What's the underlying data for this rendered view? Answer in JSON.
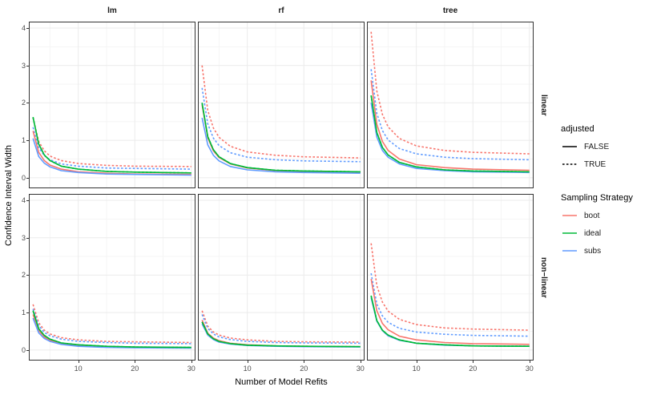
{
  "axes_note": "faceted line chart, white theme, gray gridlines",
  "colors": {
    "boot": "#F8766D",
    "ideal": "#00BA38",
    "subs": "#619CFF",
    "grid_major": "#EBEBEB",
    "grid_minor": "#F5F5F5",
    "panel_border": "#333333",
    "axis_text": "#4D4D4D",
    "line_black": "#000000"
  },
  "legend": {
    "adjusted": {
      "title": "adjusted",
      "items": [
        {
          "label": "FALSE",
          "linetype": "solid"
        },
        {
          "label": "TRUE",
          "linetype": "dashed"
        }
      ]
    },
    "sampling_strategy": {
      "title": "Sampling Strategy",
      "items": [
        {
          "label": "boot",
          "color": "#F8766D"
        },
        {
          "label": "ideal",
          "color": "#00BA38"
        },
        {
          "label": "subs",
          "color": "#619CFF"
        }
      ]
    }
  },
  "chart_data": {
    "type": "line",
    "xlabel": "Number of Model Refits",
    "ylabel": "Confidence Interval Width",
    "x_ticks": [
      10,
      20,
      30
    ],
    "y_ticks": [
      0,
      1,
      2,
      3,
      4
    ],
    "xlim": [
      1.4,
      30.6
    ],
    "ylim": [
      -0.26,
      4.15
    ],
    "grid_minor_x": [
      5,
      15,
      25
    ],
    "grid_minor_y": [
      0.5,
      1.5,
      2.5,
      3.5
    ],
    "facets": {
      "columns": [
        "lm",
        "rf",
        "tree"
      ],
      "rows": [
        "linear",
        "non−linear"
      ]
    },
    "x": [
      2,
      3,
      4,
      5,
      7,
      10,
      15,
      20,
      30
    ],
    "panels": [
      {
        "key": "linear-lm",
        "row": "linear",
        "col": "lm",
        "series": [
          {
            "strategy": "boot",
            "adjusted": "TRUE",
            "values": [
              1.6,
              0.97,
              0.72,
              0.58,
              0.46,
              0.38,
              0.33,
              0.31,
              0.3
            ]
          },
          {
            "strategy": "subs",
            "adjusted": "TRUE",
            "values": [
              1.35,
              0.81,
              0.59,
              0.48,
              0.37,
              0.31,
              0.26,
              0.25,
              0.23
            ]
          },
          {
            "strategy": "boot",
            "adjusted": "FALSE",
            "values": [
              1.25,
              0.68,
              0.46,
              0.34,
              0.23,
              0.16,
              0.12,
              0.1,
              0.09
            ]
          },
          {
            "strategy": "subs",
            "adjusted": "FALSE",
            "values": [
              1.05,
              0.57,
              0.39,
              0.29,
              0.19,
              0.14,
              0.1,
              0.09,
              0.07
            ]
          },
          {
            "strategy": "ideal",
            "adjusted": "FALSE",
            "values": [
              1.62,
              0.9,
              0.61,
              0.46,
              0.31,
              0.23,
              0.17,
              0.15,
              0.13
            ]
          },
          {
            "strategy": "ideal",
            "adjusted": "TRUE",
            "values": [
              1.62,
              0.9,
              0.61,
              0.46,
              0.31,
              0.23,
              0.17,
              0.15,
              0.13
            ]
          }
        ]
      },
      {
        "key": "linear-rf",
        "row": "linear",
        "col": "rf",
        "series": [
          {
            "strategy": "boot",
            "adjusted": "TRUE",
            "values": [
              3.0,
              1.8,
              1.33,
              1.08,
              0.84,
              0.69,
              0.6,
              0.56,
              0.53
            ]
          },
          {
            "strategy": "subs",
            "adjusted": "TRUE",
            "values": [
              2.4,
              1.44,
              1.06,
              0.86,
              0.67,
              0.55,
              0.48,
              0.45,
              0.43
            ]
          },
          {
            "strategy": "boot",
            "adjusted": "FALSE",
            "values": [
              1.95,
              1.07,
              0.72,
              0.54,
              0.37,
              0.26,
              0.19,
              0.17,
              0.14
            ]
          },
          {
            "strategy": "subs",
            "adjusted": "FALSE",
            "values": [
              1.6,
              0.88,
              0.6,
              0.45,
              0.3,
              0.21,
              0.16,
              0.14,
              0.12
            ]
          },
          {
            "strategy": "ideal",
            "adjusted": "FALSE",
            "values": [
              2.0,
              1.1,
              0.75,
              0.56,
              0.38,
              0.27,
              0.2,
              0.18,
              0.16
            ]
          },
          {
            "strategy": "ideal",
            "adjusted": "TRUE",
            "values": [
              2.0,
              1.1,
              0.75,
              0.56,
              0.38,
              0.27,
              0.2,
              0.18,
              0.16
            ]
          }
        ]
      },
      {
        "key": "linear-tree",
        "row": "linear",
        "col": "tree",
        "series": [
          {
            "strategy": "boot",
            "adjusted": "TRUE",
            "values": [
              3.9,
              2.32,
              1.69,
              1.36,
              1.05,
              0.85,
              0.73,
              0.68,
              0.64
            ]
          },
          {
            "strategy": "subs",
            "adjusted": "TRUE",
            "values": [
              2.9,
              1.72,
              1.26,
              1.01,
              0.78,
              0.64,
              0.55,
              0.51,
              0.48
            ]
          },
          {
            "strategy": "boot",
            "adjusted": "FALSE",
            "values": [
              2.6,
              1.43,
              0.97,
              0.73,
              0.5,
              0.35,
              0.27,
              0.23,
              0.2
            ]
          },
          {
            "strategy": "subs",
            "adjusted": "FALSE",
            "values": [
              2.0,
              1.09,
              0.73,
              0.55,
              0.37,
              0.25,
              0.19,
              0.16,
              0.14
            ]
          },
          {
            "strategy": "ideal",
            "adjusted": "FALSE",
            "values": [
              2.2,
              1.21,
              0.81,
              0.61,
              0.41,
              0.29,
              0.21,
              0.18,
              0.16
            ]
          },
          {
            "strategy": "ideal",
            "adjusted": "TRUE",
            "values": [
              2.2,
              1.21,
              0.81,
              0.61,
              0.41,
              0.29,
              0.21,
              0.18,
              0.16
            ]
          }
        ]
      },
      {
        "key": "nonlinear-lm",
        "row": "non−linear",
        "col": "lm",
        "series": [
          {
            "strategy": "boot",
            "adjusted": "TRUE",
            "values": [
              1.22,
              0.73,
              0.53,
              0.43,
              0.33,
              0.27,
              0.23,
              0.22,
              0.2
            ]
          },
          {
            "strategy": "subs",
            "adjusted": "TRUE",
            "values": [
              1.1,
              0.65,
              0.47,
              0.38,
              0.29,
              0.23,
              0.2,
              0.18,
              0.17
            ]
          },
          {
            "strategy": "boot",
            "adjusted": "FALSE",
            "values": [
              0.95,
              0.52,
              0.35,
              0.26,
              0.17,
              0.12,
              0.09,
              0.07,
              0.06
            ]
          },
          {
            "strategy": "subs",
            "adjusted": "FALSE",
            "values": [
              0.85,
              0.46,
              0.31,
              0.23,
              0.15,
              0.1,
              0.07,
              0.06,
              0.05
            ]
          },
          {
            "strategy": "ideal",
            "adjusted": "FALSE",
            "values": [
              1.05,
              0.57,
              0.39,
              0.29,
              0.19,
              0.14,
              0.1,
              0.08,
              0.07
            ]
          },
          {
            "strategy": "ideal",
            "adjusted": "TRUE",
            "values": [
              1.05,
              0.57,
              0.39,
              0.29,
              0.19,
              0.14,
              0.1,
              0.08,
              0.07
            ]
          }
        ]
      },
      {
        "key": "nonlinear-rf",
        "row": "non−linear",
        "col": "rf",
        "series": [
          {
            "strategy": "boot",
            "adjusted": "TRUE",
            "values": [
              1.05,
              0.64,
              0.48,
              0.4,
              0.32,
              0.27,
              0.23,
              0.22,
              0.21
            ]
          },
          {
            "strategy": "subs",
            "adjusted": "TRUE",
            "values": [
              0.95,
              0.58,
              0.43,
              0.35,
              0.28,
              0.23,
              0.2,
              0.19,
              0.18
            ]
          },
          {
            "strategy": "boot",
            "adjusted": "FALSE",
            "values": [
              0.8,
              0.45,
              0.32,
              0.25,
              0.18,
              0.14,
              0.11,
              0.1,
              0.09
            ]
          },
          {
            "strategy": "subs",
            "adjusted": "FALSE",
            "values": [
              0.7,
              0.4,
              0.28,
              0.21,
              0.16,
              0.12,
              0.1,
              0.09,
              0.08
            ]
          },
          {
            "strategy": "ideal",
            "adjusted": "FALSE",
            "values": [
              0.75,
              0.43,
              0.3,
              0.23,
              0.17,
              0.13,
              0.11,
              0.1,
              0.09
            ]
          },
          {
            "strategy": "ideal",
            "adjusted": "TRUE",
            "values": [
              0.75,
              0.43,
              0.3,
              0.23,
              0.17,
              0.13,
              0.11,
              0.1,
              0.09
            ]
          }
        ]
      },
      {
        "key": "nonlinear-tree",
        "row": "non−linear",
        "col": "tree",
        "series": [
          {
            "strategy": "boot",
            "adjusted": "TRUE",
            "values": [
              2.85,
              1.72,
              1.28,
              1.04,
              0.82,
              0.68,
              0.59,
              0.56,
              0.53
            ]
          },
          {
            "strategy": "subs",
            "adjusted": "TRUE",
            "values": [
              2.05,
              1.23,
              0.91,
              0.74,
              0.58,
              0.48,
              0.42,
              0.39,
              0.37
            ]
          },
          {
            "strategy": "boot",
            "adjusted": "FALSE",
            "values": [
              1.9,
              1.05,
              0.71,
              0.54,
              0.37,
              0.27,
              0.2,
              0.17,
              0.15
            ]
          },
          {
            "strategy": "subs",
            "adjusted": "FALSE",
            "values": [
              1.4,
              0.77,
              0.52,
              0.38,
              0.26,
              0.18,
              0.13,
              0.11,
              0.1
            ]
          },
          {
            "strategy": "ideal",
            "adjusted": "FALSE",
            "values": [
              1.45,
              0.79,
              0.53,
              0.4,
              0.27,
              0.18,
              0.14,
              0.11,
              0.1
            ]
          },
          {
            "strategy": "ideal",
            "adjusted": "TRUE",
            "values": [
              1.45,
              0.79,
              0.53,
              0.4,
              0.27,
              0.18,
              0.14,
              0.11,
              0.1
            ]
          }
        ]
      }
    ]
  }
}
